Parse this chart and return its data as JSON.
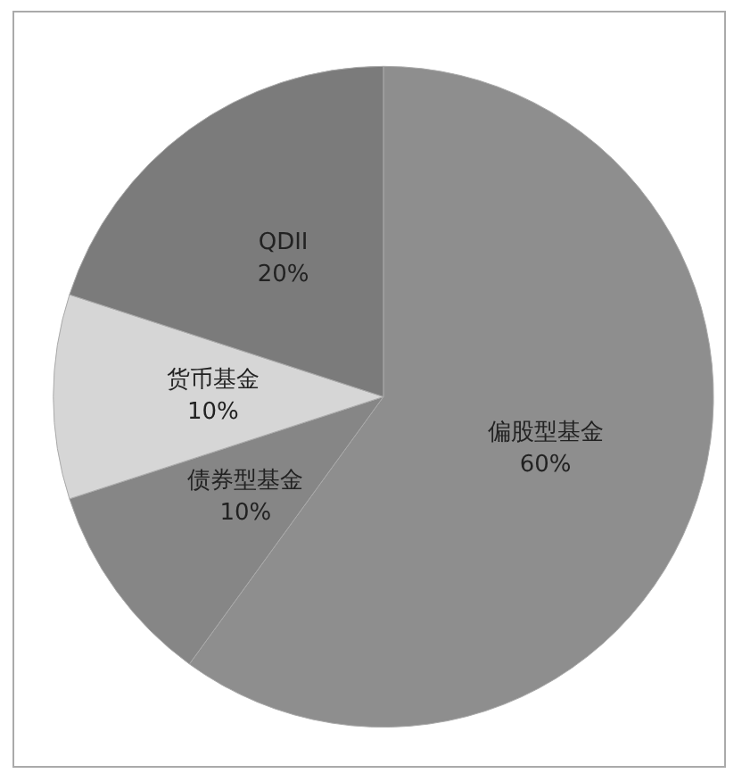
{
  "chart_data": {
    "type": "pie",
    "categories": [
      "偏股型基金",
      "债券型基金",
      "货币基金",
      "QDII"
    ],
    "values": [
      60,
      10,
      10,
      20
    ],
    "value_labels": [
      "60%",
      "10%",
      "10%",
      "20%"
    ],
    "colors": [
      "#8e8e8e",
      "#868686",
      "#d6d6d6",
      "#7b7b7b"
    ],
    "legend": false
  }
}
